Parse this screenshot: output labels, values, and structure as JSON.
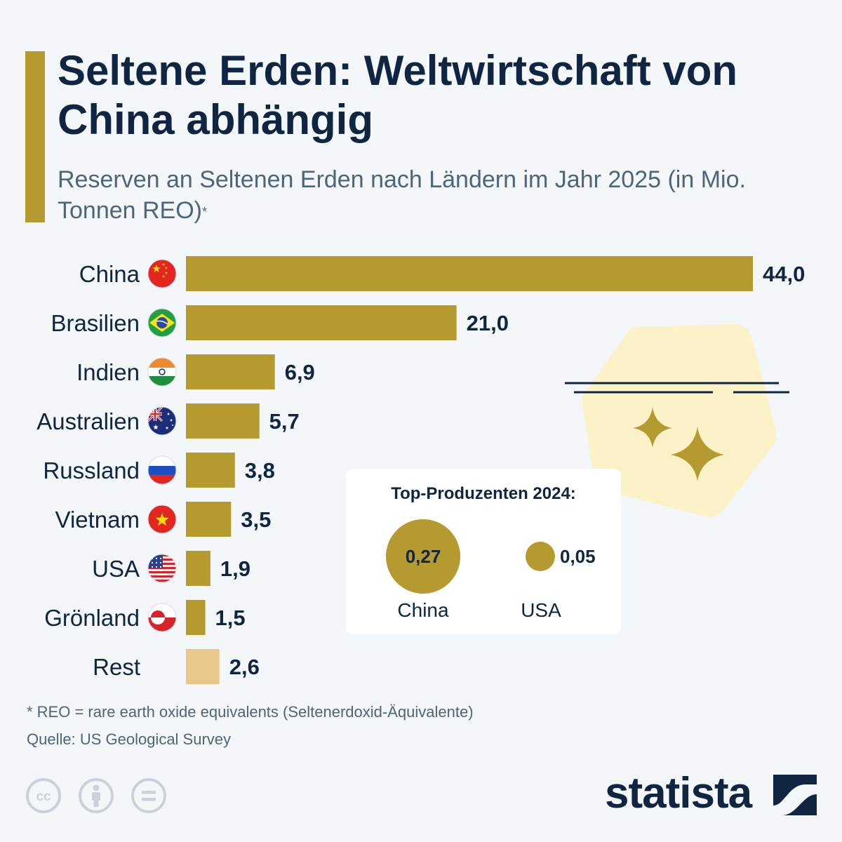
{
  "title": "Seltene Erden: Weltwirtschaft von China abhängig",
  "subtitle": "Reserven an Seltenen Erden nach Ländern im Jahr 2025 (in Mio. Tonnen REO)",
  "subtitle_mark": "*",
  "colors": {
    "bar": "#b59a30",
    "bar_rest": "#e9c98a",
    "text": "#0f2541",
    "muted": "#4f6479",
    "decor": "#fbf2c8"
  },
  "chart_data": {
    "type": "bar",
    "orientation": "horizontal",
    "title": "Reserven an Seltenen Erden nach Ländern im Jahr 2025",
    "unit": "Mio. Tonnen REO",
    "categories": [
      "China",
      "Brasilien",
      "Indien",
      "Australien",
      "Russland",
      "Vietnam",
      "USA",
      "Grönland",
      "Rest"
    ],
    "values": [
      44.0,
      21.0,
      6.9,
      5.7,
      3.8,
      3.5,
      1.9,
      1.5,
      2.6
    ],
    "value_labels": [
      "44,0",
      "21,0",
      "6,9",
      "5,7",
      "3,8",
      "3,5",
      "1,9",
      "1,5",
      "2,6"
    ],
    "flags": [
      "china-flag-icon",
      "brazil-flag-icon",
      "india-flag-icon",
      "australia-flag-icon",
      "russia-flag-icon",
      "vietnam-flag-icon",
      "usa-flag-icon",
      "greenland-flag-icon",
      ""
    ],
    "xlim": [
      0,
      44
    ]
  },
  "producers": {
    "title": "Top-Produzenten 2024:",
    "items": [
      {
        "name": "China",
        "value": 0.27,
        "label": "0,27"
      },
      {
        "name": "USA",
        "value": 0.05,
        "label": "0,05"
      }
    ]
  },
  "footnote": "* REO = rare earth oxide equivalents (Seltenerdoxid-Äquivalente)",
  "source": "Quelle: US Geological Survey",
  "license_icons": [
    "cc-icon",
    "attribution-icon",
    "no-derivatives-icon"
  ],
  "brand": "statista"
}
